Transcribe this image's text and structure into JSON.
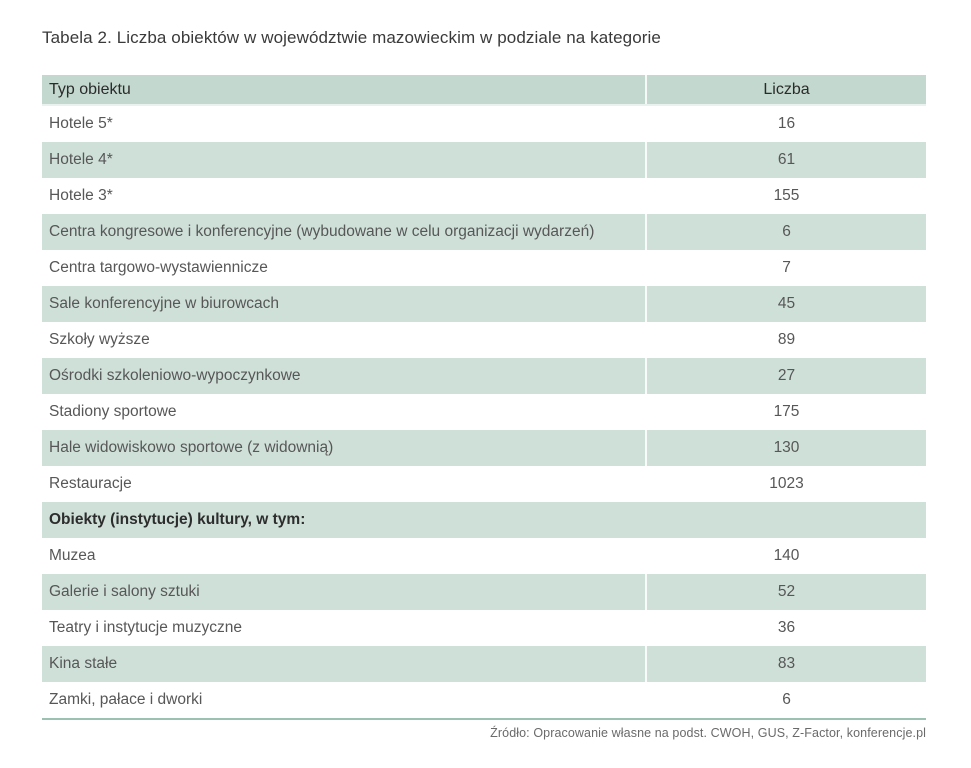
{
  "title": "Tabela 2. Liczba obiektów w województwie mazowieckim w podziale na kategorie",
  "table": {
    "columns": [
      "Typ obiektu",
      "Liczba"
    ],
    "rows": [
      {
        "type": "Hotele 5*",
        "count": "16"
      },
      {
        "type": "Hotele 4*",
        "count": "61"
      },
      {
        "type": "Hotele 3*",
        "count": "155"
      },
      {
        "type": "Centra kongresowe i konferencyjne (wybudowane w celu organizacji wydarzeń)",
        "count": "6"
      },
      {
        "type": "Centra targowo-wystawiennicze",
        "count": "7"
      },
      {
        "type": "Sale konferencyjne w biurowcach",
        "count": "45"
      },
      {
        "type": "Szkoły wyższe",
        "count": "89"
      },
      {
        "type": "Ośrodki szkoleniowo-wypoczynkowe",
        "count": "27"
      },
      {
        "type": "Stadiony sportowe",
        "count": "175"
      },
      {
        "type": "Hale widowiskowo sportowe (z widownią)",
        "count": "130"
      },
      {
        "type": "Restauracje",
        "count": "1023"
      },
      {
        "type": "Obiekty (instytucje) kultury, w tym:",
        "count": "",
        "section": true
      },
      {
        "type": "Muzea",
        "count": "140"
      },
      {
        "type": "Galerie i salony sztuki",
        "count": "52"
      },
      {
        "type": "Teatry i instytucje muzyczne",
        "count": "36"
      },
      {
        "type": "Kina stałe",
        "count": "83"
      },
      {
        "type": "Zamki, pałace i dworki",
        "count": "6"
      }
    ]
  },
  "footer": {
    "source": "Źródło: Opracowanie własne na podst. CWOH, GUS, Z-Factor, konferencje.pl"
  },
  "colors": {
    "header_bg": "#c3d8cf",
    "row_green_bg": "#cfe0d9",
    "bottom_border": "#9cc1b3"
  }
}
